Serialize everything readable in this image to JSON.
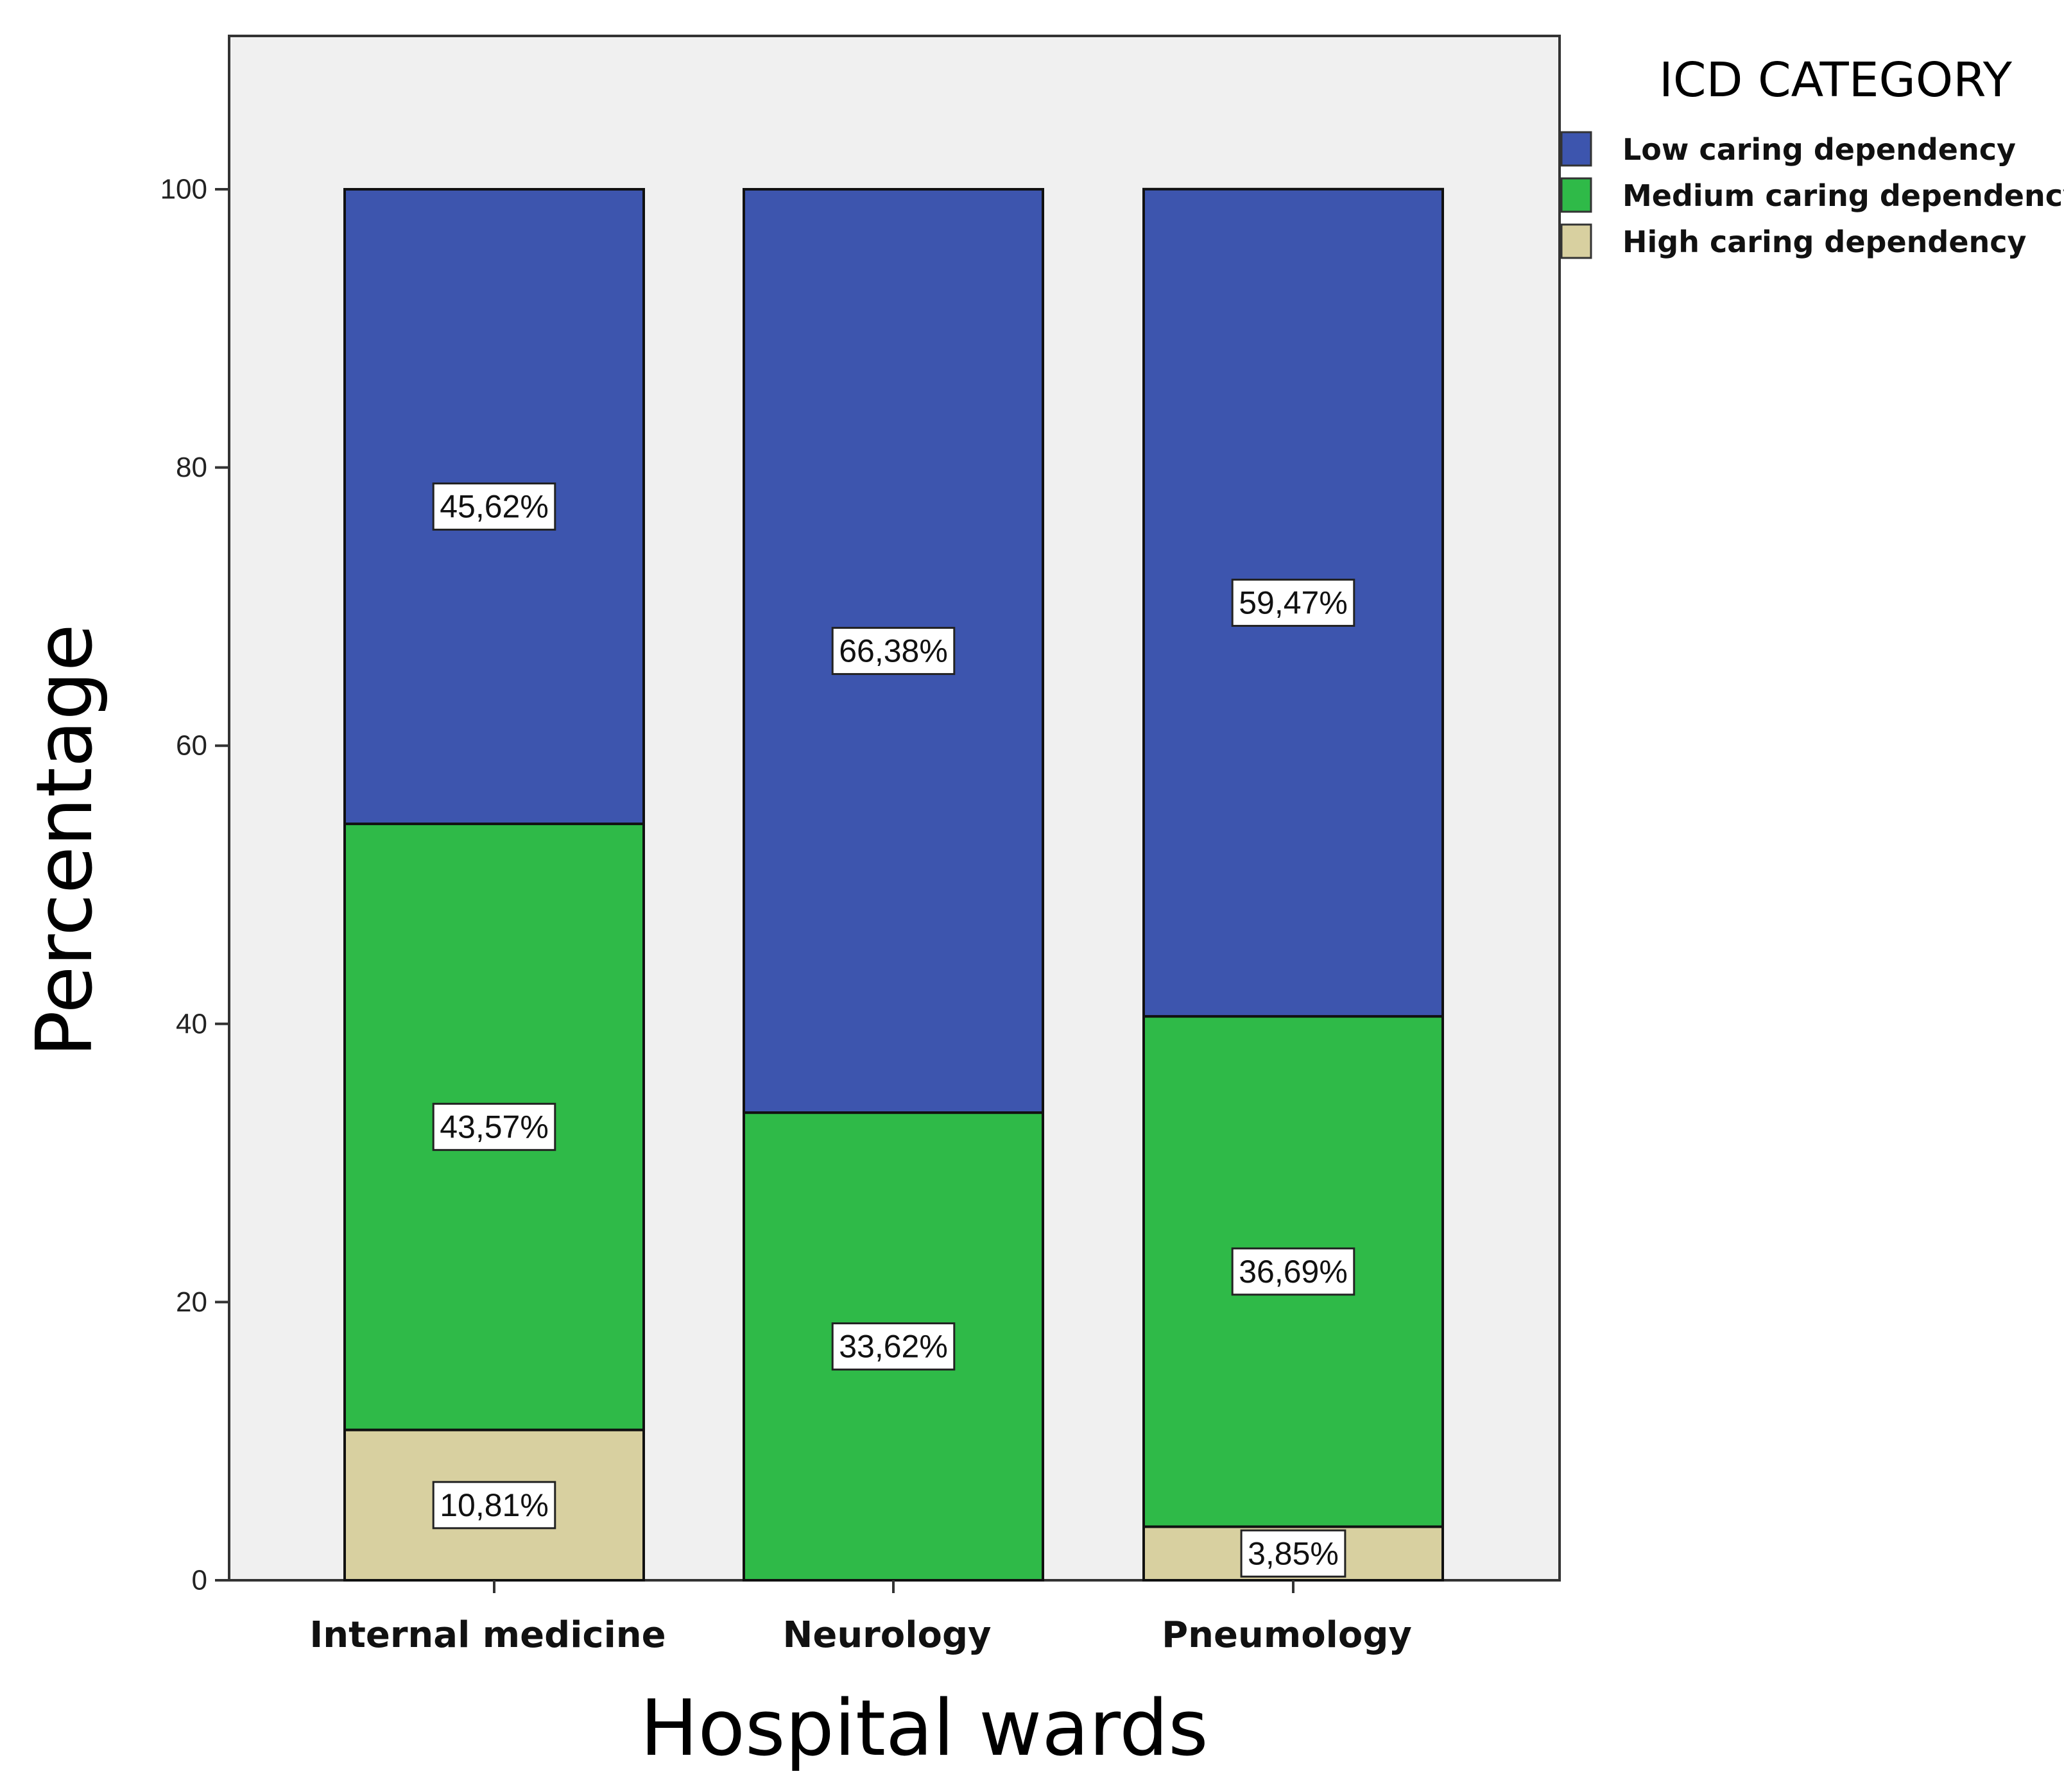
{
  "chart_data": {
    "type": "bar",
    "stacked": true,
    "categories": [
      "Internal medicine",
      "Neurology",
      "Pneumology"
    ],
    "series": [
      {
        "name": "High caring dependency",
        "values": [
          10.81,
          0,
          3.85
        ],
        "labels": [
          "10,81%",
          "",
          "3,85%"
        ],
        "color": "#d8d0a0"
      },
      {
        "name": "Medium caring dependency",
        "values": [
          43.57,
          33.62,
          36.69
        ],
        "labels": [
          "43,57%",
          "33,62%",
          "36,69%"
        ],
        "color": "#2fba48"
      },
      {
        "name": "Low caring dependency",
        "values": [
          45.62,
          66.38,
          59.47
        ],
        "labels": [
          "45,62%",
          "66,38%",
          "59,47%"
        ],
        "color": "#3d55ae"
      }
    ],
    "legend_order": [
      "Low caring dependency",
      "Medium caring dependency",
      "High caring dependency"
    ],
    "legend_title": "ICD CATEGORY",
    "legend_position": "top-right",
    "xlabel": "Hospital wards",
    "ylabel": "Percentage",
    "ylim": [
      0,
      110
    ],
    "yticks": [
      0,
      20,
      40,
      60,
      80,
      100
    ],
    "plot_background": "#f0f0f0",
    "grid": false
  }
}
